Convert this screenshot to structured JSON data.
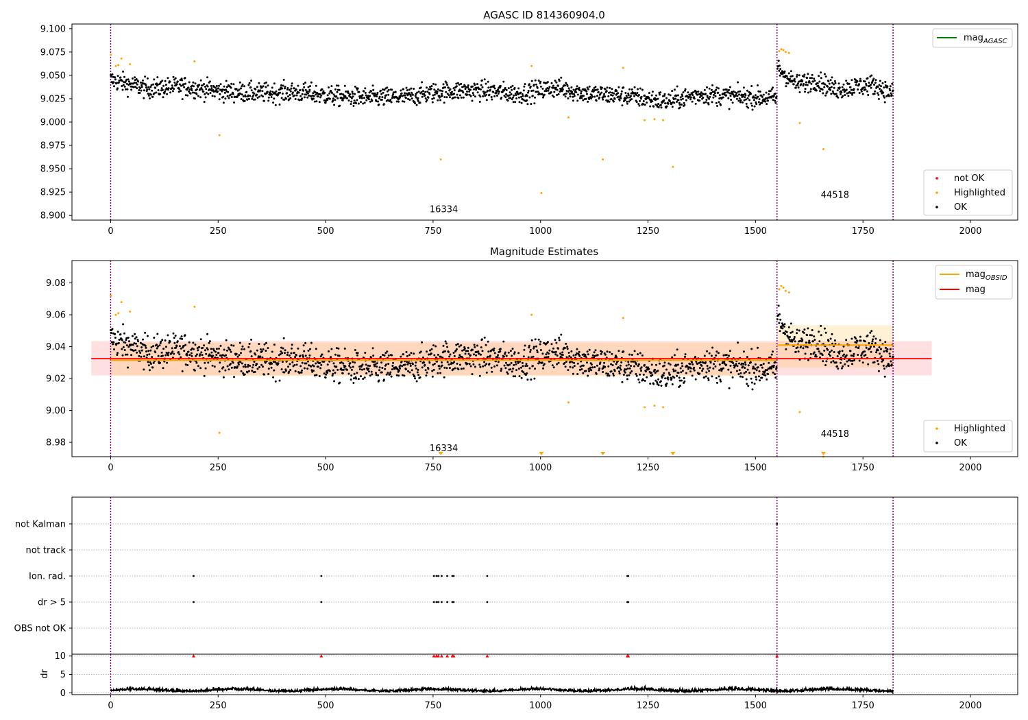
{
  "colors": {
    "ok": "#000000",
    "highlighted": "#ffa500",
    "not_ok": "#ff0000",
    "agasc_line": "#008000",
    "obsid_line": "#ffa500",
    "mag_line": "#ff0000",
    "obs_boundary": "#800080"
  },
  "chart_data": [
    {
      "type": "scatter",
      "title": "AGASC ID 814360904.0",
      "xlim": [
        -90,
        2110
      ],
      "ylim": [
        8.895,
        9.105
      ],
      "xticks": [
        "0",
        "250",
        "500",
        "750",
        "1000",
        "1250",
        "1500",
        "1750",
        "2000"
      ],
      "yticks": [
        "8.900",
        "8.925",
        "8.950",
        "8.975",
        "9.000",
        "9.025",
        "9.050",
        "9.075",
        "9.100"
      ],
      "grid": false,
      "legends": [
        {
          "placement": "top-right",
          "entries": [
            {
              "label": "mag",
              "sub": "AGASC"
            }
          ]
        },
        {
          "placement": "bottom-right",
          "entries": [
            {
              "label": "not OK"
            },
            {
              "label": "Highlighted"
            },
            {
              "label": "OK"
            }
          ]
        }
      ],
      "obs_boundaries": [
        0,
        1550,
        1820
      ],
      "obs_labels": [
        {
          "text": "16334",
          "x": 775,
          "y": 8.9035
        },
        {
          "text": "44518",
          "x": 1685,
          "y": 8.919
        }
      ],
      "ok_series": {
        "name": "OK",
        "segments": [
          {
            "x_start": 0,
            "x_end": 1549,
            "step": 1,
            "means": [
              9.045,
              9.036,
              9.038,
              9.033,
              9.031,
              9.032,
              9.028,
              9.026,
              9.027,
              9.033,
              9.034,
              9.03,
              9.037,
              9.03,
              9.028,
              9.022,
              9.03,
              9.027,
              9.026
            ]
          },
          {
            "x_start": 1551,
            "x_end": 1820,
            "step": 1,
            "means": [
              9.058,
              9.04,
              9.045,
              9.035,
              9.038,
              9.04,
              9.03
            ]
          }
        ],
        "noise": 0.0075
      },
      "highlighted": [
        {
          "x": 0,
          "y": 9.072
        },
        {
          "x": 12,
          "y": 9.06
        },
        {
          "x": 18,
          "y": 9.061
        },
        {
          "x": 25,
          "y": 9.068
        },
        {
          "x": 45,
          "y": 9.062
        },
        {
          "x": 195,
          "y": 9.065
        },
        {
          "x": 253,
          "y": 8.986
        },
        {
          "x": 768,
          "y": 8.96
        },
        {
          "x": 979,
          "y": 9.06
        },
        {
          "x": 1002,
          "y": 8.924
        },
        {
          "x": 1065,
          "y": 9.005
        },
        {
          "x": 1145,
          "y": 8.96
        },
        {
          "x": 1192,
          "y": 9.058
        },
        {
          "x": 1242,
          "y": 9.002
        },
        {
          "x": 1265,
          "y": 9.003
        },
        {
          "x": 1285,
          "y": 9.002
        },
        {
          "x": 1308,
          "y": 8.952
        },
        {
          "x": 1555,
          "y": 9.076
        },
        {
          "x": 1560,
          "y": 9.078
        },
        {
          "x": 1565,
          "y": 9.077
        },
        {
          "x": 1570,
          "y": 9.075
        },
        {
          "x": 1578,
          "y": 9.074
        },
        {
          "x": 1603,
          "y": 8.999
        },
        {
          "x": 1658,
          "y": 8.971
        }
      ],
      "not_ok": []
    },
    {
      "type": "scatter",
      "title": "Magnitude Estimates",
      "xlim": [
        -90,
        2110
      ],
      "ylim": [
        8.971,
        9.094
      ],
      "xticks": [
        "0",
        "250",
        "500",
        "750",
        "1000",
        "1250",
        "1500",
        "1750",
        "2000"
      ],
      "yticks": [
        "8.98",
        "9.00",
        "9.02",
        "9.04",
        "9.06",
        "9.08"
      ],
      "grid": false,
      "legends": [
        {
          "placement": "top-right",
          "entries": [
            {
              "label": "mag",
              "sub": "OBSID"
            },
            {
              "label": "mag"
            }
          ]
        },
        {
          "placement": "bottom-right",
          "entries": [
            {
              "label": "Highlighted"
            },
            {
              "label": "OK"
            }
          ]
        }
      ],
      "obs_boundaries": [
        0,
        1550,
        1820
      ],
      "obs_labels": [
        {
          "text": "16334",
          "x": 775,
          "y": 8.9745
        },
        {
          "text": "44518",
          "x": 1685,
          "y": 8.9835
        }
      ],
      "mag": {
        "value": 9.0325,
        "band": [
          9.022,
          9.0435
        ],
        "x_range": [
          -45,
          1910
        ]
      },
      "mag_obsid": [
        {
          "obsid": "16334",
          "value": 9.0315,
          "band": [
            9.0215,
            9.0425
          ],
          "x_range": [
            0,
            1549
          ]
        },
        {
          "obsid": "44518",
          "value": 9.041,
          "band": [
            9.027,
            9.0535
          ],
          "x_range": [
            1551,
            1820
          ]
        }
      ],
      "highlighted_out_of_range_x": [
        768,
        1002,
        1145,
        1308,
        1658
      ],
      "ok_series": "same as panel 1",
      "highlighted": "same as panel 1"
    },
    {
      "type": "scatter",
      "title": "",
      "xlim": [
        -90,
        2110
      ],
      "category_ticks": [
        "not Kalman",
        "not track",
        "Ion. rad.",
        "dr > 5",
        "OBS not OK"
      ],
      "flags": {
        "not Kalman": [
          1550
        ],
        "not track": [],
        "Ion. rad.": [
          193,
          490,
          752,
          758,
          762,
          770,
          783,
          795,
          798,
          876,
          1202,
          1204
        ],
        "dr > 5": [
          193,
          490,
          752,
          758,
          762,
          770,
          783,
          795,
          798,
          876,
          1202,
          1204
        ],
        "OBS not OK": []
      },
      "grid": true,
      "obs_boundaries": [
        0,
        1550,
        1820
      ]
    },
    {
      "type": "line",
      "title": "",
      "ylabel": "dr",
      "xlim": [
        -90,
        2110
      ],
      "ylim": [
        -0.5,
        10.5
      ],
      "xticks": [
        "0",
        "250",
        "500",
        "750",
        "1000",
        "1250",
        "1500",
        "1750",
        "2000"
      ],
      "yticks": [
        "0",
        "5",
        "10"
      ],
      "grid": true,
      "dr_baseline": 0.5,
      "dr_spikes_x": [
        193,
        490,
        752,
        758,
        762,
        770,
        783,
        795,
        798,
        876,
        1202,
        1204,
        1550
      ],
      "dr_spike_value": 10,
      "obs_boundaries": [
        0,
        1550,
        1820
      ]
    }
  ]
}
